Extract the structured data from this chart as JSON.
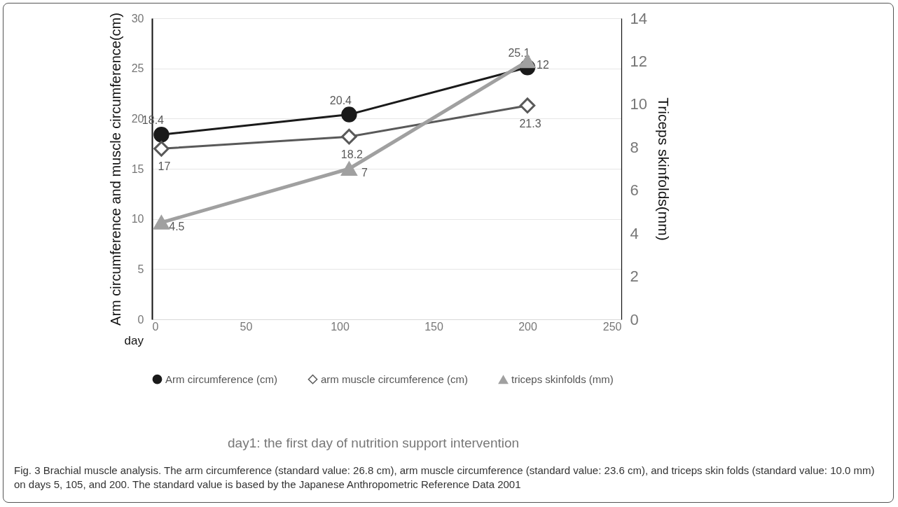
{
  "chart_data": {
    "type": "line",
    "xlabel": "day",
    "ylabel": "Arm circumference and muscle circumference(cm)",
    "y2label": "Triceps skinfolds(mm)",
    "x": [
      5,
      105,
      200
    ],
    "series": [
      {
        "name": "Arm circumference (cm)",
        "color": "#1a1a1a",
        "marker": "circle",
        "values": [
          18.4,
          20.4,
          25.1
        ]
      },
      {
        "name": "arm muscle circumference (cm)",
        "color": "#595959",
        "marker": "diamond",
        "values": [
          17,
          18.2,
          21.3
        ]
      },
      {
        "name": "triceps skinfolds (mm)",
        "color": "#a0a0a0",
        "marker": "triangle",
        "axis": "y2",
        "values": [
          4.5,
          7,
          12
        ]
      }
    ],
    "xlim": [
      0,
      250
    ],
    "xticks": [
      0,
      50,
      100,
      150,
      200,
      250
    ],
    "ylim": [
      0,
      30
    ],
    "yticks": [
      0,
      5,
      10,
      15,
      20,
      25,
      30
    ],
    "y2lim": [
      0,
      14
    ],
    "y2ticks": [
      0,
      2,
      4,
      6,
      8,
      10,
      12,
      14
    ],
    "grid": "y",
    "legend": "bottom",
    "data_labels": true,
    "line_style": "solid",
    "annotations": [
      "day1: the first day of  nutrition support intervention",
      "Fig. 3 Brachial muscle analysis. The arm circumference (standard value: 26.8 cm), arm muscle circumference (standard value: 23.6 cm), and triceps skin folds (standard value: 10.0 mm) on days 5, 105, and 200. The standard value is based by the Japanese Anthropometric Reference Data 2001"
    ]
  }
}
